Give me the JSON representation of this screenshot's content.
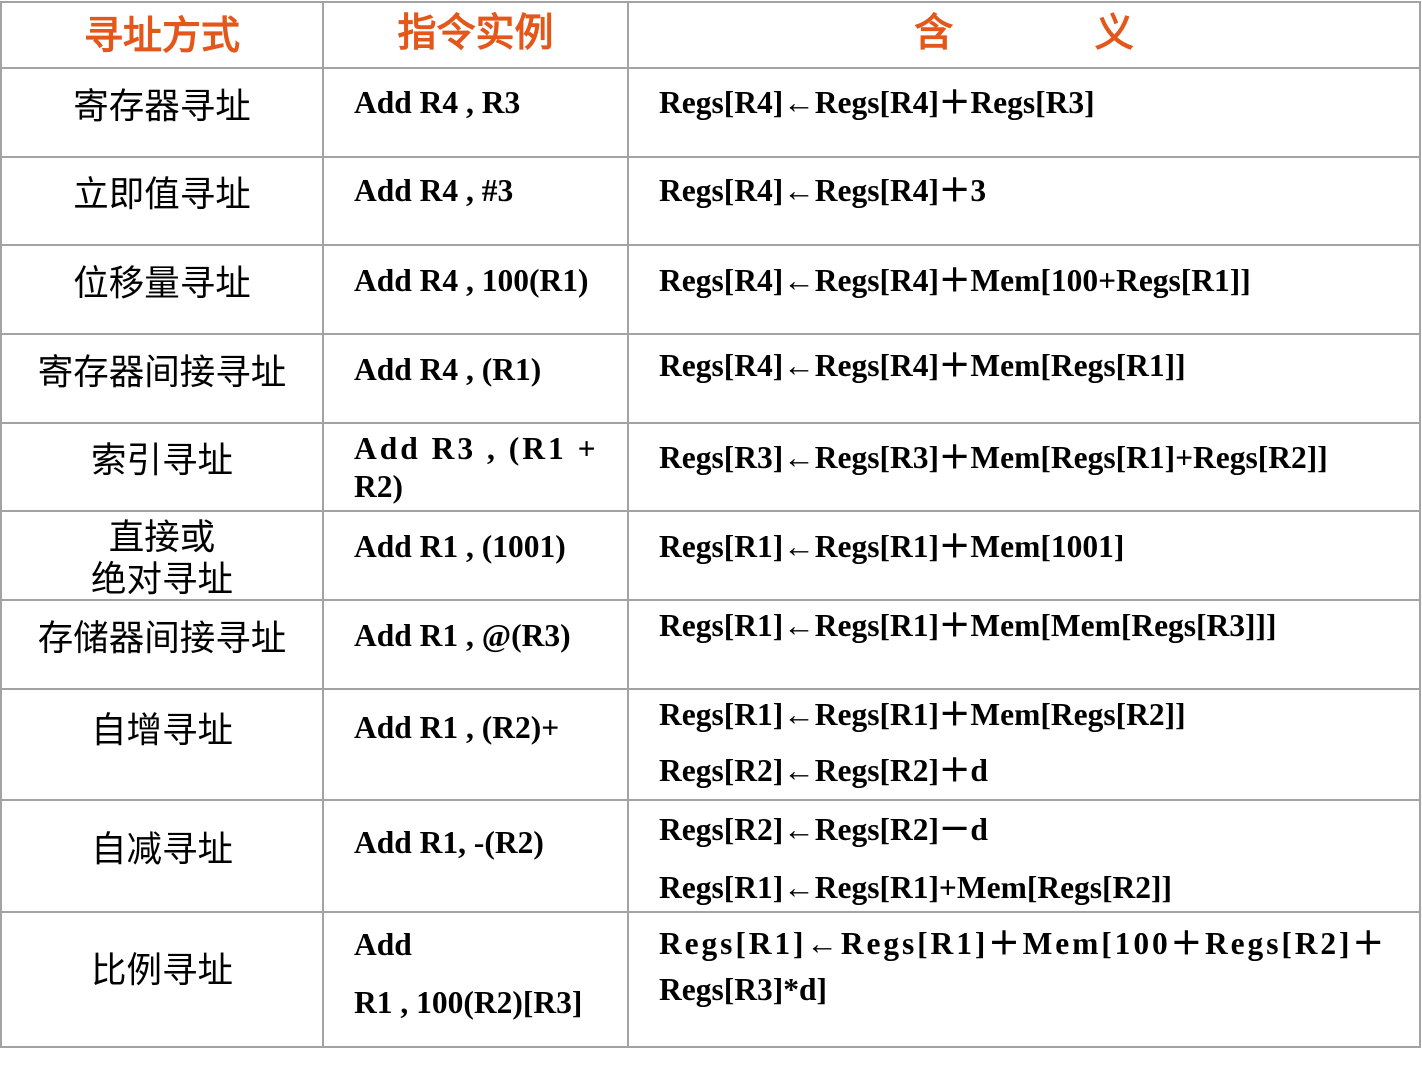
{
  "table": {
    "headers": {
      "mode": "寻址方式",
      "example": "指令实例",
      "meaning": "含 义"
    },
    "rows": [
      {
        "mode": [
          "寄存器寻址"
        ],
        "example": [
          "Add R4 , R3"
        ],
        "meaning": [
          "Regs[R4]←Regs[R4]＋Regs[R3]"
        ]
      },
      {
        "mode": [
          "立即值寻址"
        ],
        "example": [
          "Add R4 , #3"
        ],
        "meaning": [
          "Regs[R4]←Regs[R4]＋3"
        ]
      },
      {
        "mode": [
          "位移量寻址"
        ],
        "example": [
          "Add R4 , 100(R1)"
        ],
        "meaning": [
          "Regs[R4]←Regs[R4]＋Mem[100+Regs[R1]]"
        ]
      },
      {
        "mode": [
          "寄存器间接寻址"
        ],
        "example": [
          "Add R4 , (R1)"
        ],
        "meaning": [
          "Regs[R4]←Regs[R4]＋Mem[Regs[R1]]"
        ]
      },
      {
        "mode": [
          "索引寻址"
        ],
        "example": [
          "Add R3 , (R1 +",
          "R2)"
        ],
        "meaning": [
          "Regs[R3]←Regs[R3]＋Mem[Regs[R1]+Regs[R2]]"
        ]
      },
      {
        "mode": [
          "直接或",
          "绝对寻址"
        ],
        "example": [
          "Add R1 , (1001)"
        ],
        "meaning": [
          "Regs[R1]←Regs[R1]＋Mem[1001]"
        ]
      },
      {
        "mode": [
          "存储器间接寻址"
        ],
        "example": [
          "Add R1 , @(R3)"
        ],
        "meaning": [
          "Regs[R1]←Regs[R1]＋Mem[Mem[Regs[R3]]]"
        ]
      },
      {
        "mode": [
          "自增寻址"
        ],
        "example": [
          "Add R1 , (R2)+"
        ],
        "meaning": [
          "Regs[R1]←Regs[R1]＋Mem[Regs[R2]]",
          "Regs[R2]←Regs[R2]＋d"
        ]
      },
      {
        "mode": [
          "自减寻址"
        ],
        "example": [
          "Add R1, -(R2)"
        ],
        "meaning": [
          "Regs[R2]←Regs[R2]－d",
          "Regs[R1]←Regs[R1]+Mem[Regs[R2]]"
        ]
      },
      {
        "mode": [
          "比例寻址"
        ],
        "example": [
          "Add",
          "R1 , 100(R2)[R3]"
        ],
        "meaning": [
          "Regs[R1]←Regs[R1]＋Mem[100＋Regs[R2]＋",
          "Regs[R3]*d]"
        ]
      }
    ]
  },
  "colors": {
    "header_text": "#E4571B",
    "grid_line": "#A3A3A3",
    "body_text": "#000000"
  }
}
